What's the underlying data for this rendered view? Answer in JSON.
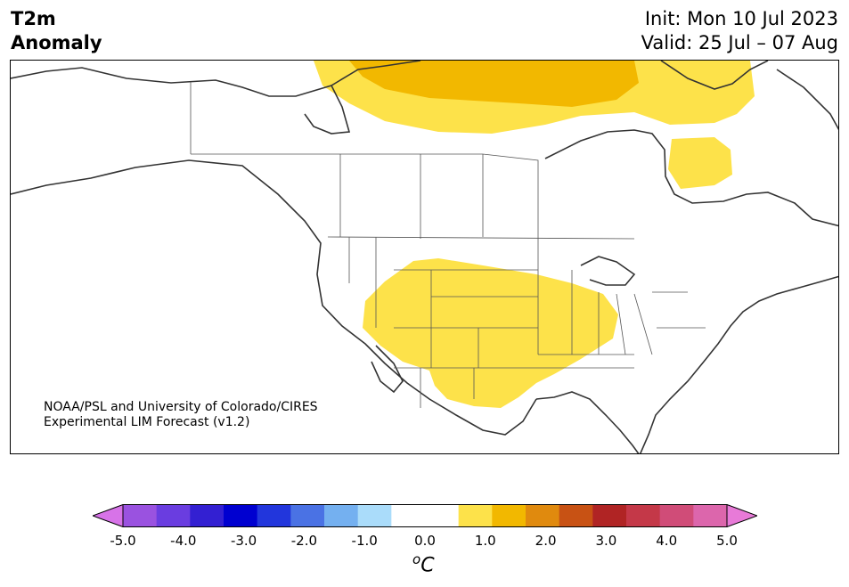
{
  "title": {
    "variable_line1": "T2m",
    "variable_line2": "Anomaly",
    "init": "Init: Mon 10 Jul 2023",
    "valid": "Valid: 25 Jul – 07 Aug"
  },
  "credit": {
    "line1": "NOAA/PSL and University of Colorado/CIRES",
    "line2": "Experimental LIM Forecast (v1.2)"
  },
  "colorbar": {
    "colors": [
      "#d773e8",
      "#9a52e0",
      "#6a3de0",
      "#3320d2",
      "#0000d0",
      "#2236dc",
      "#4a72e4",
      "#74b0f0",
      "#aadcfa",
      "#ffffff",
      "#ffffff",
      "#fde24a",
      "#f2b800",
      "#e08a0e",
      "#c85214",
      "#b02424",
      "#c43848",
      "#d04c78",
      "#dc66ac",
      "#e87ad8"
    ],
    "tick_labels": [
      "-5.0",
      "-4.0",
      "-3.0",
      "-2.0",
      "-1.0",
      "0.0",
      "1.0",
      "2.0",
      "3.0",
      "4.0",
      "5.0"
    ],
    "unit_base": "o",
    "unit": "C"
  },
  "colors": {
    "anomaly_light": "#fde24a",
    "anomaly_strong": "#f2b800",
    "coast": "#333333"
  }
}
